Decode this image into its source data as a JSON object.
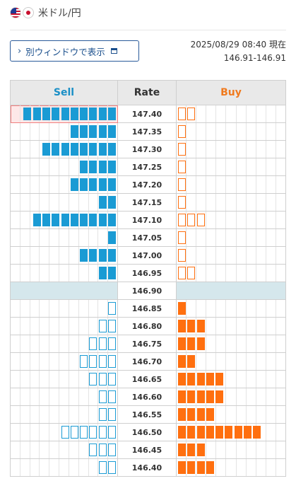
{
  "header": {
    "pair_label": "米ドル/円",
    "flag_left": "us-flag-icon",
    "flag_right": "jp-flag-icon"
  },
  "toolbar": {
    "window_button_label": "別ウィンドウで表示",
    "chevron_icon": "chevron-right-icon",
    "external_icon": "external-window-icon"
  },
  "status": {
    "timestamp": "2025/08/29 08:40 現在",
    "rate_range": "146.91-146.91"
  },
  "board": {
    "sell_header": "Sell",
    "rate_header": "Rate",
    "buy_header": "Buy",
    "colors": {
      "sell": "#1a9bd4",
      "buy": "#ff6f0f",
      "current_row": "#d5e7ec"
    },
    "rows": [
      {
        "rate": "147.40",
        "sell": 10,
        "sell_style": "filled",
        "buy": 2,
        "buy_style": "outline",
        "highlight": true
      },
      {
        "rate": "147.35",
        "sell": 5,
        "sell_style": "filled",
        "buy": 1,
        "buy_style": "outline"
      },
      {
        "rate": "147.30",
        "sell": 8,
        "sell_style": "filled",
        "buy": 1,
        "buy_style": "outline"
      },
      {
        "rate": "147.25",
        "sell": 4,
        "sell_style": "filled",
        "buy": 1,
        "buy_style": "outline"
      },
      {
        "rate": "147.20",
        "sell": 5,
        "sell_style": "filled",
        "buy": 1,
        "buy_style": "outline"
      },
      {
        "rate": "147.15",
        "sell": 2,
        "sell_style": "filled",
        "buy": 1,
        "buy_style": "outline"
      },
      {
        "rate": "147.10",
        "sell": 9,
        "sell_style": "filled",
        "buy": 3,
        "buy_style": "outline"
      },
      {
        "rate": "147.05",
        "sell": 1,
        "sell_style": "filled",
        "buy": 1,
        "buy_style": "outline"
      },
      {
        "rate": "147.00",
        "sell": 4,
        "sell_style": "filled",
        "buy": 1,
        "buy_style": "outline"
      },
      {
        "rate": "146.95",
        "sell": 2,
        "sell_style": "filled",
        "buy": 2,
        "buy_style": "outline"
      },
      {
        "rate": "146.90",
        "sell": 0,
        "sell_style": "filled",
        "buy": 0,
        "buy_style": "filled",
        "current": true
      },
      {
        "rate": "146.85",
        "sell": 1,
        "sell_style": "outline",
        "buy": 1,
        "buy_style": "filled"
      },
      {
        "rate": "146.80",
        "sell": 2,
        "sell_style": "outline",
        "buy": 3,
        "buy_style": "filled"
      },
      {
        "rate": "146.75",
        "sell": 3,
        "sell_style": "outline",
        "buy": 3,
        "buy_style": "filled"
      },
      {
        "rate": "146.70",
        "sell": 4,
        "sell_style": "outline",
        "buy": 2,
        "buy_style": "filled"
      },
      {
        "rate": "146.65",
        "sell": 3,
        "sell_style": "outline",
        "buy": 5,
        "buy_style": "filled"
      },
      {
        "rate": "146.60",
        "sell": 2,
        "sell_style": "outline",
        "buy": 5,
        "buy_style": "filled"
      },
      {
        "rate": "146.55",
        "sell": 2,
        "sell_style": "outline",
        "buy": 4,
        "buy_style": "filled"
      },
      {
        "rate": "146.50",
        "sell": 6,
        "sell_style": "outline",
        "buy": 9,
        "buy_style": "filled"
      },
      {
        "rate": "146.45",
        "sell": 3,
        "sell_style": "outline",
        "buy": 3,
        "buy_style": "filled"
      },
      {
        "rate": "146.40",
        "sell": 2,
        "sell_style": "outline",
        "buy": 4,
        "buy_style": "filled"
      }
    ]
  }
}
